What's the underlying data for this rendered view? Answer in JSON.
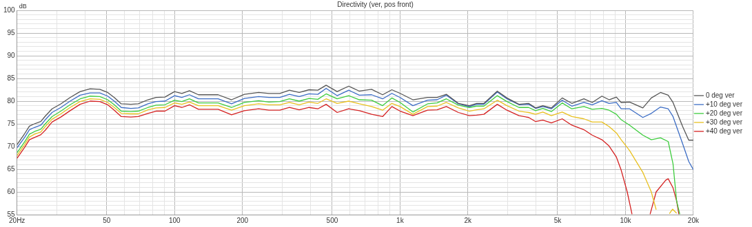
{
  "chart_data": {
    "type": "line",
    "title": "Directivity (ver, pos front)",
    "ylabel": "dB",
    "log": "x",
    "grid": true,
    "legend": "right",
    "marker": "none",
    "line_style": "solid",
    "xlim": [
      20,
      20000
    ],
    "ylim": [
      55,
      100
    ],
    "xticks": [
      {
        "value": 20,
        "label": "20Hz"
      },
      {
        "value": 30,
        "label": null
      },
      {
        "value": 40,
        "label": null
      },
      50,
      {
        "value": 60,
        "label": null
      },
      {
        "value": 70,
        "label": null
      },
      {
        "value": 80,
        "label": null
      },
      {
        "value": 90,
        "label": null
      },
      100,
      200,
      {
        "value": 300,
        "label": null
      },
      {
        "value": 400,
        "label": null
      },
      500,
      {
        "value": 600,
        "label": null
      },
      {
        "value": 700,
        "label": null
      },
      {
        "value": 800,
        "label": null
      },
      {
        "value": 900,
        "label": null
      },
      {
        "value": 1000,
        "label": "1k"
      },
      {
        "value": 2000,
        "label": "2k"
      },
      {
        "value": 3000,
        "label": null
      },
      {
        "value": 4000,
        "label": null
      },
      {
        "value": 5000,
        "label": "5k"
      },
      {
        "value": 6000,
        "label": null
      },
      {
        "value": 7000,
        "label": null
      },
      {
        "value": 8000,
        "label": null
      },
      {
        "value": 9000,
        "label": null
      },
      {
        "value": 10000,
        "label": "10k"
      },
      {
        "value": 20000,
        "label": "20k"
      }
    ],
    "yticks": [
      55,
      {
        "value": 56,
        "label": null
      },
      {
        "value": 57,
        "label": null
      },
      {
        "value": 58,
        "label": null
      },
      {
        "value": 59,
        "label": null
      },
      60,
      {
        "value": 61,
        "label": null
      },
      {
        "value": 62,
        "label": null
      },
      {
        "value": 63,
        "label": null
      },
      {
        "value": 64,
        "label": null
      },
      65,
      {
        "value": 66,
        "label": null
      },
      {
        "value": 67,
        "label": null
      },
      {
        "value": 68,
        "label": null
      },
      {
        "value": 69,
        "label": null
      },
      70,
      {
        "value": 71,
        "label": null
      },
      {
        "value": 72,
        "label": null
      },
      {
        "value": 73,
        "label": null
      },
      {
        "value": 74,
        "label": null
      },
      75,
      {
        "value": 76,
        "label": null
      },
      {
        "value": 77,
        "label": null
      },
      {
        "value": 78,
        "label": null
      },
      {
        "value": 79,
        "label": null
      },
      80,
      {
        "value": 81,
        "label": null
      },
      {
        "value": 82,
        "label": null
      },
      {
        "value": 83,
        "label": null
      },
      {
        "value": 84,
        "label": null
      },
      85,
      {
        "value": 86,
        "label": null
      },
      {
        "value": 87,
        "label": null
      },
      {
        "value": 88,
        "label": null
      },
      {
        "value": 89,
        "label": null
      },
      90,
      {
        "value": 91,
        "label": null
      },
      {
        "value": 92,
        "label": null
      },
      {
        "value": 93,
        "label": null
      },
      {
        "value": 94,
        "label": null
      },
      95,
      {
        "value": 96,
        "label": null
      },
      {
        "value": 97,
        "label": null
      },
      {
        "value": 98,
        "label": null
      },
      {
        "value": 99,
        "label": null
      },
      100
    ],
    "series": [
      {
        "name": "0 deg ver",
        "color": "#555555",
        "x": [
          20,
          21.6,
          22.7,
          23.9,
          25.5,
          26.7,
          28.6,
          31.3,
          34.4,
          38.1,
          42.2,
          46.6,
          50.5,
          54,
          58,
          64,
          69,
          76.2,
          82.8,
          90.6,
          100,
          107.7,
          116.4,
          127.6,
          156,
          178.9,
          204,
          236,
          262,
          293,
          323,
          357,
          395,
          432,
          470,
          526,
          592,
          660,
          748,
          837,
          920,
          1001,
          1140,
          1325,
          1460,
          1605,
          1815,
          2030,
          2185,
          2355,
          2700,
          2980,
          3370,
          3720,
          3994,
          4300,
          4690,
          5240,
          5780,
          6540,
          7120,
          7860,
          8460,
          9110,
          9570,
          10430,
          11940,
          13020,
          14300,
          15470,
          16250,
          17930,
          19080,
          20000
        ],
        "values": [
          70.4,
          72.8,
          74.5,
          75.0,
          75.5,
          76.7,
          78.3,
          79.4,
          80.8,
          82.1,
          82.7,
          82.6,
          81.9,
          80.8,
          79.4,
          79.3,
          79.4,
          80.3,
          80.8,
          80.9,
          82.1,
          81.7,
          82.3,
          81.4,
          81.4,
          80.3,
          81.5,
          81.9,
          81.7,
          81.7,
          82.4,
          81.9,
          82.5,
          82.4,
          83.5,
          82.1,
          83.3,
          82.2,
          82.6,
          81.4,
          82.5,
          81.7,
          80.3,
          80.8,
          80.8,
          81.5,
          79.5,
          79.0,
          79.5,
          79.5,
          82.2,
          80.7,
          79.3,
          79.5,
          78.5,
          79.0,
          78.5,
          80.7,
          79.5,
          80.5,
          79.7,
          81.1,
          80.3,
          80.9,
          79.7,
          79.8,
          78.5,
          80.7,
          81.9,
          81.3,
          79.7,
          74.4,
          71.4,
          71.4
        ]
      },
      {
        "name": "+10 deg ver",
        "color": "#3b6cc4",
        "x": [
          20,
          21.6,
          22.7,
          23.9,
          25.5,
          26.7,
          28.6,
          31.3,
          34.4,
          38.1,
          42.2,
          46.6,
          50.5,
          54,
          58,
          64,
          69,
          76.2,
          82.8,
          90.6,
          100,
          107.7,
          116.4,
          127.6,
          156,
          178.9,
          204,
          236,
          262,
          293,
          323,
          357,
          395,
          432,
          470,
          526,
          592,
          660,
          748,
          837,
          920,
          1001,
          1140,
          1325,
          1460,
          1605,
          1815,
          2030,
          2185,
          2355,
          2700,
          2980,
          3370,
          3720,
          3994,
          4300,
          4690,
          5240,
          5780,
          6540,
          7120,
          7860,
          8460,
          9110,
          9570,
          10430,
          11940,
          13020,
          14300,
          15470,
          16250,
          17930,
          19080,
          20000
        ],
        "values": [
          69.7,
          72.0,
          73.7,
          74.2,
          74.7,
          75.9,
          77.5,
          78.6,
          80.0,
          81.3,
          81.8,
          81.8,
          81.1,
          80.0,
          78.6,
          78.4,
          78.5,
          79.4,
          79.9,
          80.0,
          81.2,
          80.8,
          81.4,
          80.5,
          80.5,
          79.4,
          80.6,
          81.0,
          80.8,
          80.8,
          81.5,
          81.0,
          81.6,
          81.5,
          82.8,
          81.2,
          82.4,
          81.3,
          81.4,
          80.5,
          81.7,
          80.8,
          79.0,
          80.2,
          80.3,
          81.3,
          79.4,
          78.8,
          79.3,
          79.3,
          82.0,
          80.5,
          79.2,
          79.3,
          78.4,
          78.8,
          78.3,
          80.2,
          78.9,
          79.7,
          79.2,
          80.1,
          79.5,
          79.7,
          78.3,
          78.3,
          76.4,
          77.3,
          78.7,
          78.3,
          76.6,
          70.6,
          66.7,
          64.9
        ]
      },
      {
        "name": "+20 deg ver",
        "color": "#3dcc3d",
        "x": [
          20,
          21.6,
          22.7,
          23.9,
          25.5,
          26.7,
          28.6,
          31.3,
          34.4,
          38.1,
          42.2,
          46.6,
          50.5,
          54,
          58,
          64,
          69,
          76.2,
          82.8,
          90.6,
          100,
          107.7,
          116.4,
          127.6,
          156,
          178.9,
          204,
          236,
          262,
          293,
          323,
          357,
          395,
          432,
          470,
          526,
          592,
          660,
          748,
          837,
          920,
          1001,
          1140,
          1325,
          1460,
          1605,
          1815,
          2030,
          2185,
          2355,
          2700,
          2980,
          3370,
          3720,
          3994,
          4300,
          4690,
          5240,
          5780,
          6540,
          7120,
          7860,
          8460,
          9110,
          9570,
          10430,
          11940,
          13020,
          14300,
          15470,
          16250,
          16860,
          17410
        ],
        "values": [
          68.6,
          71.0,
          72.7,
          73.3,
          73.8,
          75.0,
          76.6,
          77.8,
          79.2,
          80.5,
          81.1,
          81.0,
          80.3,
          79.2,
          77.8,
          77.7,
          77.8,
          78.6,
          79.1,
          79.2,
          80.2,
          79.9,
          80.5,
          79.6,
          79.6,
          78.6,
          79.7,
          80.1,
          79.8,
          79.9,
          80.5,
          80.0,
          80.6,
          80.4,
          81.6,
          80.5,
          81.2,
          80.3,
          80.2,
          79.0,
          80.7,
          79.7,
          77.6,
          79.4,
          79.6,
          80.5,
          79.1,
          78.6,
          78.9,
          78.9,
          81.2,
          79.9,
          78.6,
          78.6,
          77.9,
          78.4,
          77.7,
          79.6,
          78.3,
          78.8,
          78.2,
          78.4,
          78.0,
          77.1,
          75.9,
          74.7,
          72.5,
          71.5,
          71.9,
          71.1,
          66.2,
          58.0,
          55.1
        ]
      },
      {
        "name": "+30 deg ver",
        "color": "#e8c020",
        "x": [
          20,
          21.6,
          22.7,
          23.9,
          25.5,
          26.7,
          28.6,
          31.3,
          34.4,
          38.1,
          42.2,
          46.6,
          50.5,
          54,
          58,
          64,
          69,
          76.2,
          82.8,
          90.6,
          100,
          107.7,
          116.4,
          127.6,
          156,
          178.9,
          204,
          236,
          262,
          293,
          323,
          357,
          395,
          432,
          470,
          526,
          592,
          660,
          748,
          837,
          920,
          1001,
          1140,
          1325,
          1460,
          1605,
          1815,
          2030,
          2185,
          2355,
          2700,
          2980,
          3370,
          3720,
          3994,
          4300,
          4690,
          5240,
          5780,
          6540,
          7120,
          7860,
          8460,
          9110,
          9570,
          10430,
          11940,
          13020,
          13680,
          14800,
          15660,
          16170,
          16860
        ],
        "values": [
          68.0,
          70.4,
          72.1,
          72.7,
          73.2,
          74.4,
          76.0,
          77.2,
          78.6,
          79.9,
          80.5,
          80.4,
          79.7,
          78.6,
          77.3,
          77.2,
          77.2,
          78.1,
          78.5,
          78.6,
          79.6,
          79.3,
          79.8,
          79.0,
          79.0,
          78.0,
          79.0,
          79.4,
          79.2,
          79.2,
          79.7,
          79.2,
          79.8,
          79.5,
          80.5,
          79.5,
          80.0,
          79.4,
          78.8,
          78.0,
          79.5,
          78.8,
          77.1,
          78.8,
          78.9,
          79.7,
          78.5,
          77.8,
          78.1,
          78.3,
          80.2,
          79.0,
          77.8,
          77.5,
          77.1,
          77.6,
          76.8,
          77.6,
          76.6,
          76.1,
          75.4,
          75.4,
          74.4,
          73.0,
          71.5,
          69.1,
          64.3,
          60.0,
          56.1,
          null,
          55.2,
          56.2,
          55.3
        ]
      },
      {
        "name": "+40 deg ver",
        "color": "#d42020",
        "x": [
          20,
          21.6,
          22.7,
          23.9,
          25.5,
          26.7,
          28.6,
          31.3,
          34.4,
          38.1,
          42.2,
          46.6,
          50.5,
          54,
          58,
          64,
          69,
          76.2,
          82.8,
          90.6,
          100,
          107.7,
          116.4,
          127.6,
          156,
          178.9,
          204,
          236,
          262,
          293,
          323,
          357,
          395,
          432,
          470,
          526,
          592,
          660,
          748,
          837,
          920,
          1001,
          1140,
          1325,
          1460,
          1605,
          1815,
          2030,
          2185,
          2355,
          2700,
          2980,
          3370,
          3720,
          3994,
          4300,
          4690,
          5240,
          5780,
          6540,
          7120,
          7860,
          8460,
          9110,
          9570,
          10180,
          10690,
          11800,
          12860,
          13680,
          15090,
          15470,
          16250,
          16860,
          17250
        ],
        "values": [
          67.4,
          69.8,
          71.5,
          72.0,
          72.6,
          73.6,
          75.4,
          76.5,
          77.9,
          79.3,
          80.0,
          79.9,
          79.2,
          78.0,
          76.6,
          76.5,
          76.6,
          77.3,
          77.8,
          77.8,
          79.0,
          78.6,
          79.2,
          78.2,
          78.2,
          77.0,
          77.9,
          78.3,
          78.0,
          78.0,
          78.6,
          78.1,
          78.6,
          78.3,
          79.3,
          77.5,
          78.3,
          77.9,
          77.1,
          76.6,
          78.8,
          77.8,
          76.8,
          78.0,
          78.1,
          78.8,
          77.5,
          76.8,
          76.9,
          77.1,
          79.3,
          78.0,
          76.8,
          76.4,
          75.5,
          75.8,
          75.2,
          76.1,
          74.7,
          73.7,
          72.5,
          71.5,
          70.1,
          67.7,
          64.8,
          60.0,
          55.1,
          null,
          55.1,
          60.0,
          62.6,
          62.9,
          60.9,
          58.0,
          55.1
        ]
      }
    ]
  }
}
